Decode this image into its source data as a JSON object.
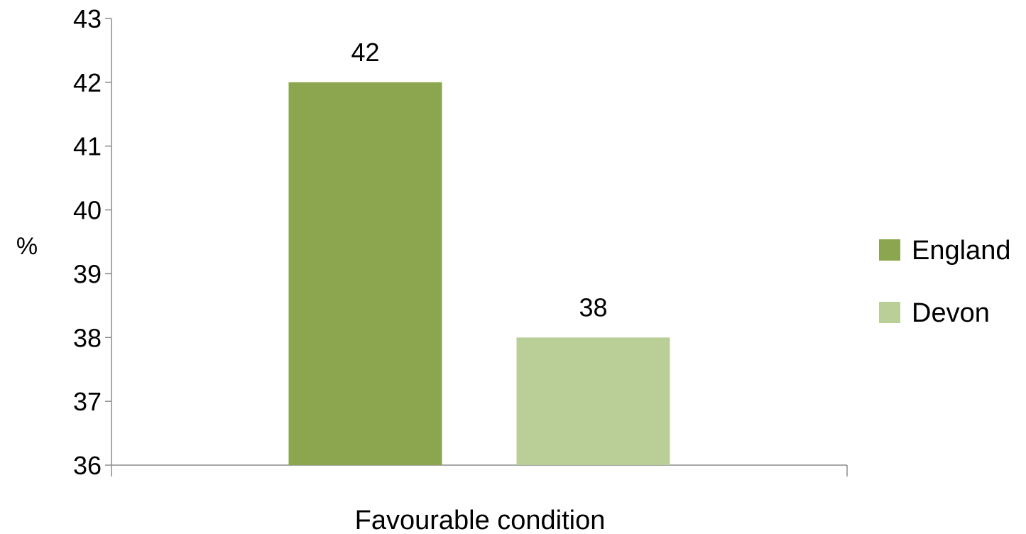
{
  "chart_data": {
    "type": "bar",
    "title": "",
    "xlabel": "Favourable condition",
    "ylabel": "%",
    "categories": [
      "Favourable condition"
    ],
    "series": [
      {
        "name": "England",
        "values": [
          42
        ],
        "color": "#8ba64f"
      },
      {
        "name": "Devon",
        "values": [
          38
        ],
        "color": "#bacf97"
      }
    ],
    "ylim": [
      36,
      43
    ],
    "yticks": [
      36,
      37,
      38,
      39,
      40,
      41,
      42,
      43
    ],
    "grid": false,
    "legend_position": "right",
    "data_labels": [
      "42",
      "38"
    ]
  }
}
